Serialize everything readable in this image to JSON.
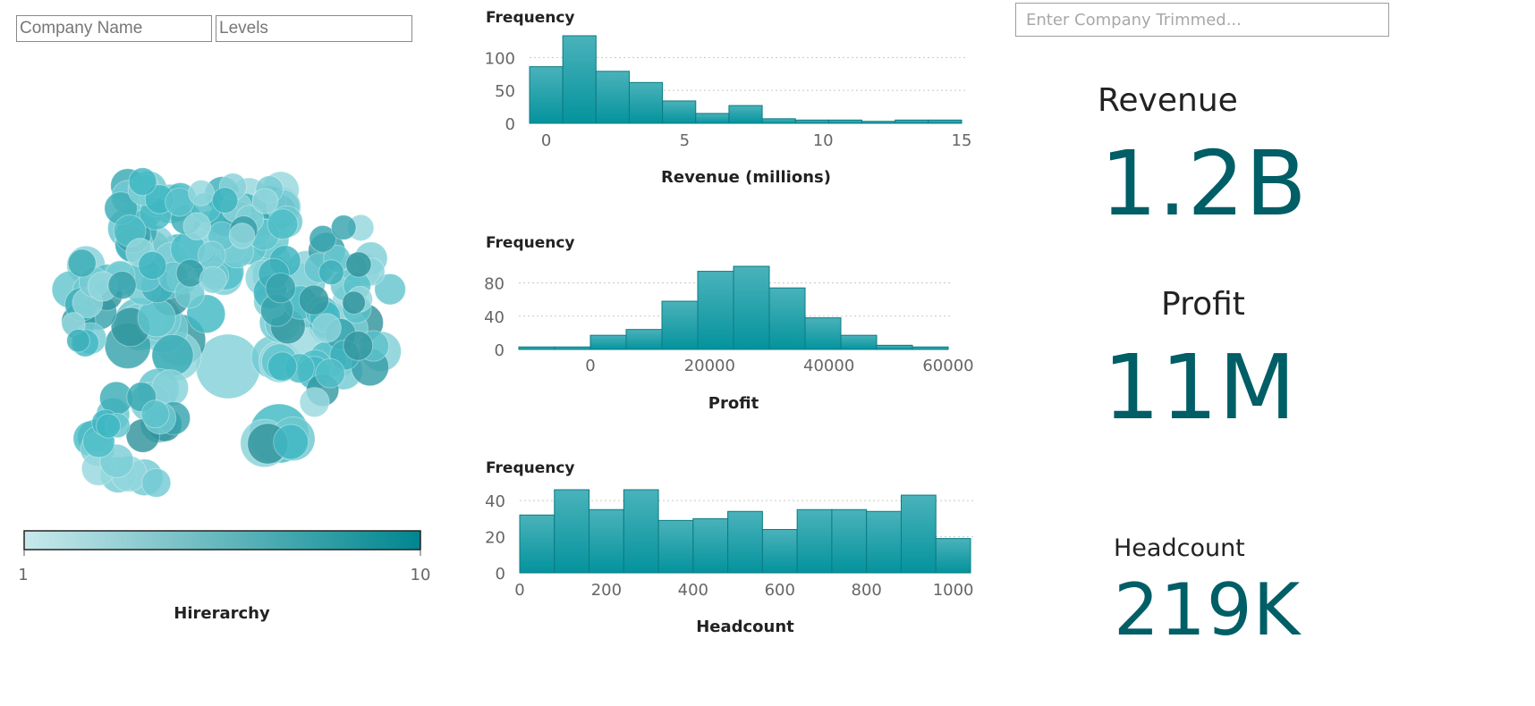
{
  "filters": {
    "company_name_placeholder": "Company Name",
    "levels_placeholder": "Levels",
    "search_placeholder": "Enter Company Trimmed..."
  },
  "legend": {
    "title": "Hirerarchy",
    "min_label": "1",
    "max_label": "10",
    "color_low": "#c8e9ec",
    "color_high": "#00868f"
  },
  "colors": {
    "bar_top": "#4ab2ba",
    "bar_bottom": "#04939d",
    "bar_stroke": "#0b7b83",
    "kpi_value": "#005e66",
    "bubble_base": "#45b3bd"
  },
  "kpis": {
    "revenue_label": "Revenue",
    "revenue_value": "1.2B",
    "profit_label": "Profit",
    "profit_value": "11M",
    "headcount_label": "Headcount",
    "headcount_value": "219K"
  },
  "chart_data": [
    {
      "type": "bar",
      "subtype": "histogram",
      "ylabel": "Frequency",
      "xlabel": "Revenue (millions)",
      "bin_edges": [
        -0.6,
        0.6,
        1.8,
        3.0,
        4.2,
        5.4,
        6.6,
        7.8,
        9.0,
        10.2,
        11.4,
        12.6,
        13.8,
        15.0
      ],
      "values": [
        86,
        133,
        79,
        62,
        34,
        15,
        27,
        7,
        5,
        5,
        3,
        5,
        5
      ],
      "xticks": [
        0,
        5,
        10,
        15
      ],
      "yticks": [
        0,
        50,
        100
      ],
      "xlim": [
        -0.6,
        15
      ],
      "ylim": [
        0,
        133
      ],
      "grid": true
    },
    {
      "type": "bar",
      "subtype": "histogram",
      "ylabel": "Frequency",
      "xlabel": "Profit",
      "bin_edges": [
        -12000,
        -6000,
        0,
        6000,
        12000,
        18000,
        24000,
        30000,
        36000,
        42000,
        48000,
        54000,
        60000
      ],
      "values": [
        3,
        3,
        17,
        24,
        58,
        94,
        100,
        74,
        38,
        17,
        5,
        3
      ],
      "xticks": [
        0,
        20000,
        40000,
        60000
      ],
      "yticks": [
        0,
        40,
        80
      ],
      "xlim": [
        -12000,
        60000
      ],
      "ylim": [
        0,
        100
      ],
      "grid": true
    },
    {
      "type": "bar",
      "subtype": "histogram",
      "ylabel": "Frequency",
      "xlabel": "Headcount",
      "bin_edges": [
        0,
        80,
        160,
        240,
        320,
        400,
        480,
        560,
        640,
        720,
        800,
        880,
        960,
        1040
      ],
      "values": [
        32,
        46,
        35,
        46,
        29,
        30,
        34,
        24,
        35,
        35,
        34,
        43,
        19
      ],
      "xticks": [
        0,
        200,
        400,
        600,
        800,
        1000
      ],
      "yticks": [
        0,
        20,
        40
      ],
      "xlim": [
        0,
        1040
      ],
      "ylim": [
        0,
        46
      ],
      "grid": true
    }
  ]
}
